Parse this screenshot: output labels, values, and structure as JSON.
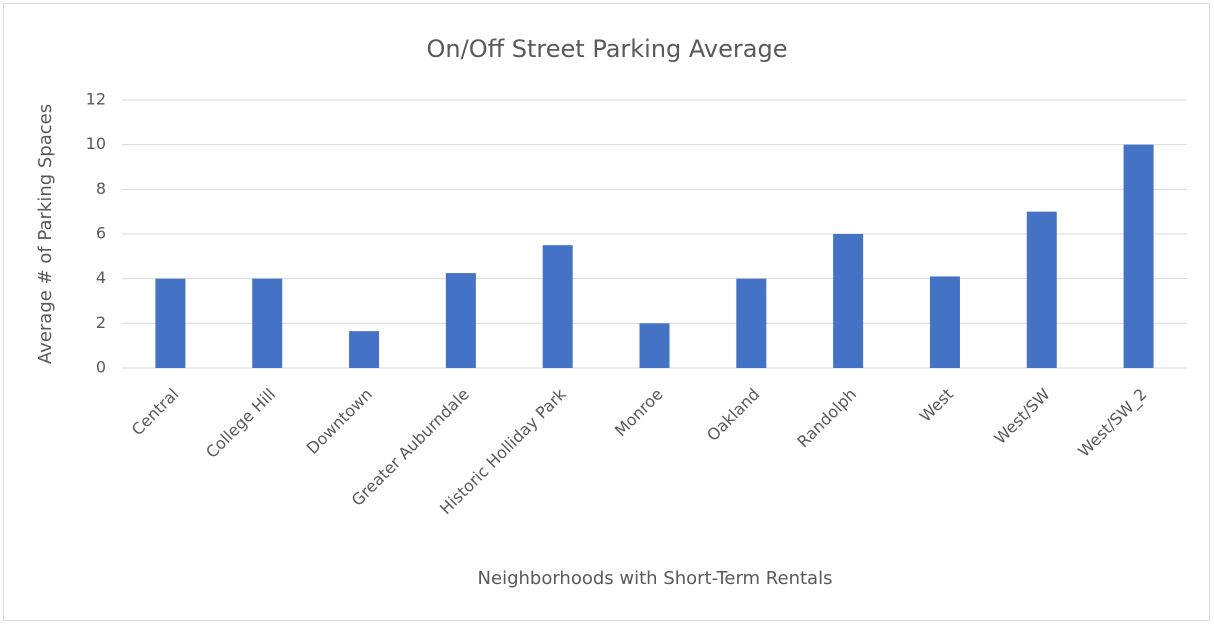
{
  "chart_data": {
    "type": "bar",
    "title": "On/Off Street Parking Average",
    "x_label": "Neighborhoods with Short-Term Rentals",
    "y_label": "Average # of Parking Spaces",
    "categories": [
      "Central",
      "College Hill",
      "Downtown",
      "Greater Auburndale",
      "Historic Holliday Park",
      "Monroe",
      "Oakland",
      "Randolph",
      "West",
      "West/SW",
      "West/SW_2"
    ],
    "values": [
      4,
      4,
      1.65,
      4.25,
      5.5,
      2,
      4,
      6,
      4.1,
      7,
      10
    ],
    "color": "#4472c4",
    "ylim": [
      0,
      12
    ],
    "yticks": [
      0,
      2,
      4,
      6,
      8,
      10,
      12
    ],
    "grid": true
  }
}
